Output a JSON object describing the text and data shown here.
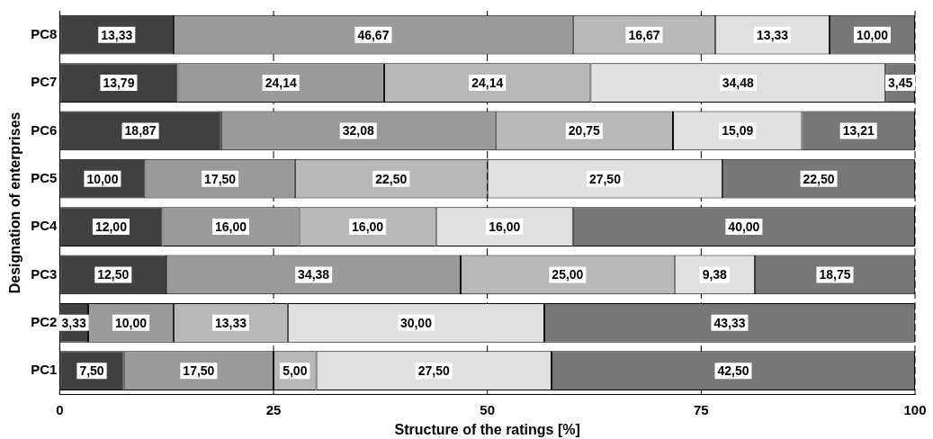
{
  "chart_data": {
    "type": "bar",
    "orientation": "horizontal",
    "stacked": true,
    "xlabel": "Structure of the ratings [%]",
    "ylabel": "Designation of enterprises",
    "categories": [
      "PC8",
      "PC7",
      "PC6",
      "PC5",
      "PC4",
      "PC3",
      "PC2",
      "PC1"
    ],
    "xlim": [
      0,
      100
    ],
    "xticks": [
      0,
      25,
      50,
      75,
      100
    ],
    "grid": "x",
    "legend": false,
    "series": [
      {
        "color": "#404040",
        "values": [
          13.33,
          13.79,
          18.87,
          10.0,
          12.0,
          12.5,
          3.33,
          7.5
        ],
        "value_labels": [
          "13,33",
          "13,79",
          "18,87",
          "10,00",
          "12,00",
          "12,50",
          "3,33",
          "7,50"
        ]
      },
      {
        "color": "#9a9a9a",
        "values": [
          46.67,
          24.14,
          32.08,
          17.5,
          16.0,
          34.38,
          10.0,
          17.5
        ],
        "value_labels": [
          "46,67",
          "24,14",
          "32,08",
          "17,50",
          "16,00",
          "34,38",
          "10,00",
          "17,50"
        ]
      },
      {
        "color": "#b8b8b8",
        "values": [
          16.67,
          24.14,
          20.75,
          22.5,
          16.0,
          25.0,
          13.33,
          5.0
        ],
        "value_labels": [
          "16,67",
          "24,14",
          "20,75",
          "22,50",
          "16,00",
          "25,00",
          "13,33",
          "5,00"
        ]
      },
      {
        "color": "#e0e0e0",
        "values": [
          13.33,
          34.48,
          15.09,
          27.5,
          16.0,
          9.38,
          30.0,
          27.5
        ],
        "value_labels": [
          "13,33",
          "34,48",
          "15,09",
          "27,50",
          "16,00",
          "9,38",
          "30,00",
          "27,50"
        ]
      },
      {
        "color": "#777777",
        "values": [
          10.0,
          3.45,
          13.21,
          22.5,
          40.0,
          18.75,
          43.33,
          42.5
        ],
        "value_labels": [
          "10,00",
          "3,45",
          "13,21",
          "22,50",
          "40,00",
          "18,75",
          "43,33",
          "42,50"
        ]
      }
    ]
  }
}
